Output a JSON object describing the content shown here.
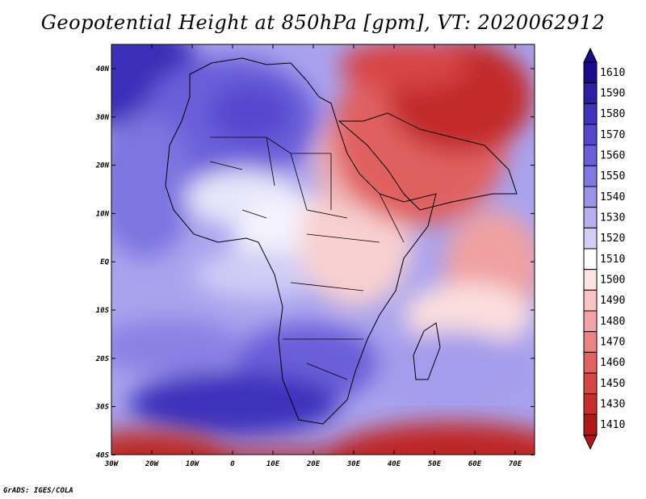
{
  "title": "Geopotential Height at 850hPa [gpm], VT: 2020062912",
  "footer": "GrADS: IGES/COLA",
  "axes": {
    "lon_labels": [
      "30W",
      "20W",
      "10W",
      "0",
      "10E",
      "20E",
      "30E",
      "40E",
      "50E",
      "60E",
      "70E"
    ],
    "lat_labels": [
      "40N",
      "30N",
      "20N",
      "10N",
      "EQ",
      "10S",
      "20S",
      "30S",
      "40S"
    ]
  },
  "colorbar": {
    "labels": [
      "1610",
      "1590",
      "1580",
      "1570",
      "1560",
      "1550",
      "1540",
      "1530",
      "1520",
      "1510",
      "1500",
      "1490",
      "1480",
      "1470",
      "1460",
      "1450",
      "1430",
      "1410"
    ],
    "colors": [
      "#1a0a8c",
      "#2d1fa6",
      "#3f34bf",
      "#5447cf",
      "#6a5fd9",
      "#8278e2",
      "#9b93ea",
      "#b6b0f1",
      "#d2cff7",
      "#ffffff",
      "#fde2e2",
      "#f9c4c4",
      "#f3a3a3",
      "#ec8282",
      "#e36262",
      "#d84545",
      "#c82d2d",
      "#b01818"
    ]
  },
  "chart_data": {
    "type": "heatmap",
    "title": "Geopotential Height at 850hPa [gpm], VT: 2020062912",
    "variable": "Geopotential Height",
    "level": "850hPa",
    "units": "gpm",
    "valid_time": "2020062912",
    "lon_range": [
      "30W",
      "75E"
    ],
    "lat_range": [
      "40S",
      "45N"
    ],
    "contour_levels": [
      1410,
      1430,
      1450,
      1460,
      1470,
      1480,
      1490,
      1500,
      1510,
      1520,
      1530,
      1540,
      1550,
      1560,
      1570,
      1580,
      1590,
      1610
    ]
  }
}
